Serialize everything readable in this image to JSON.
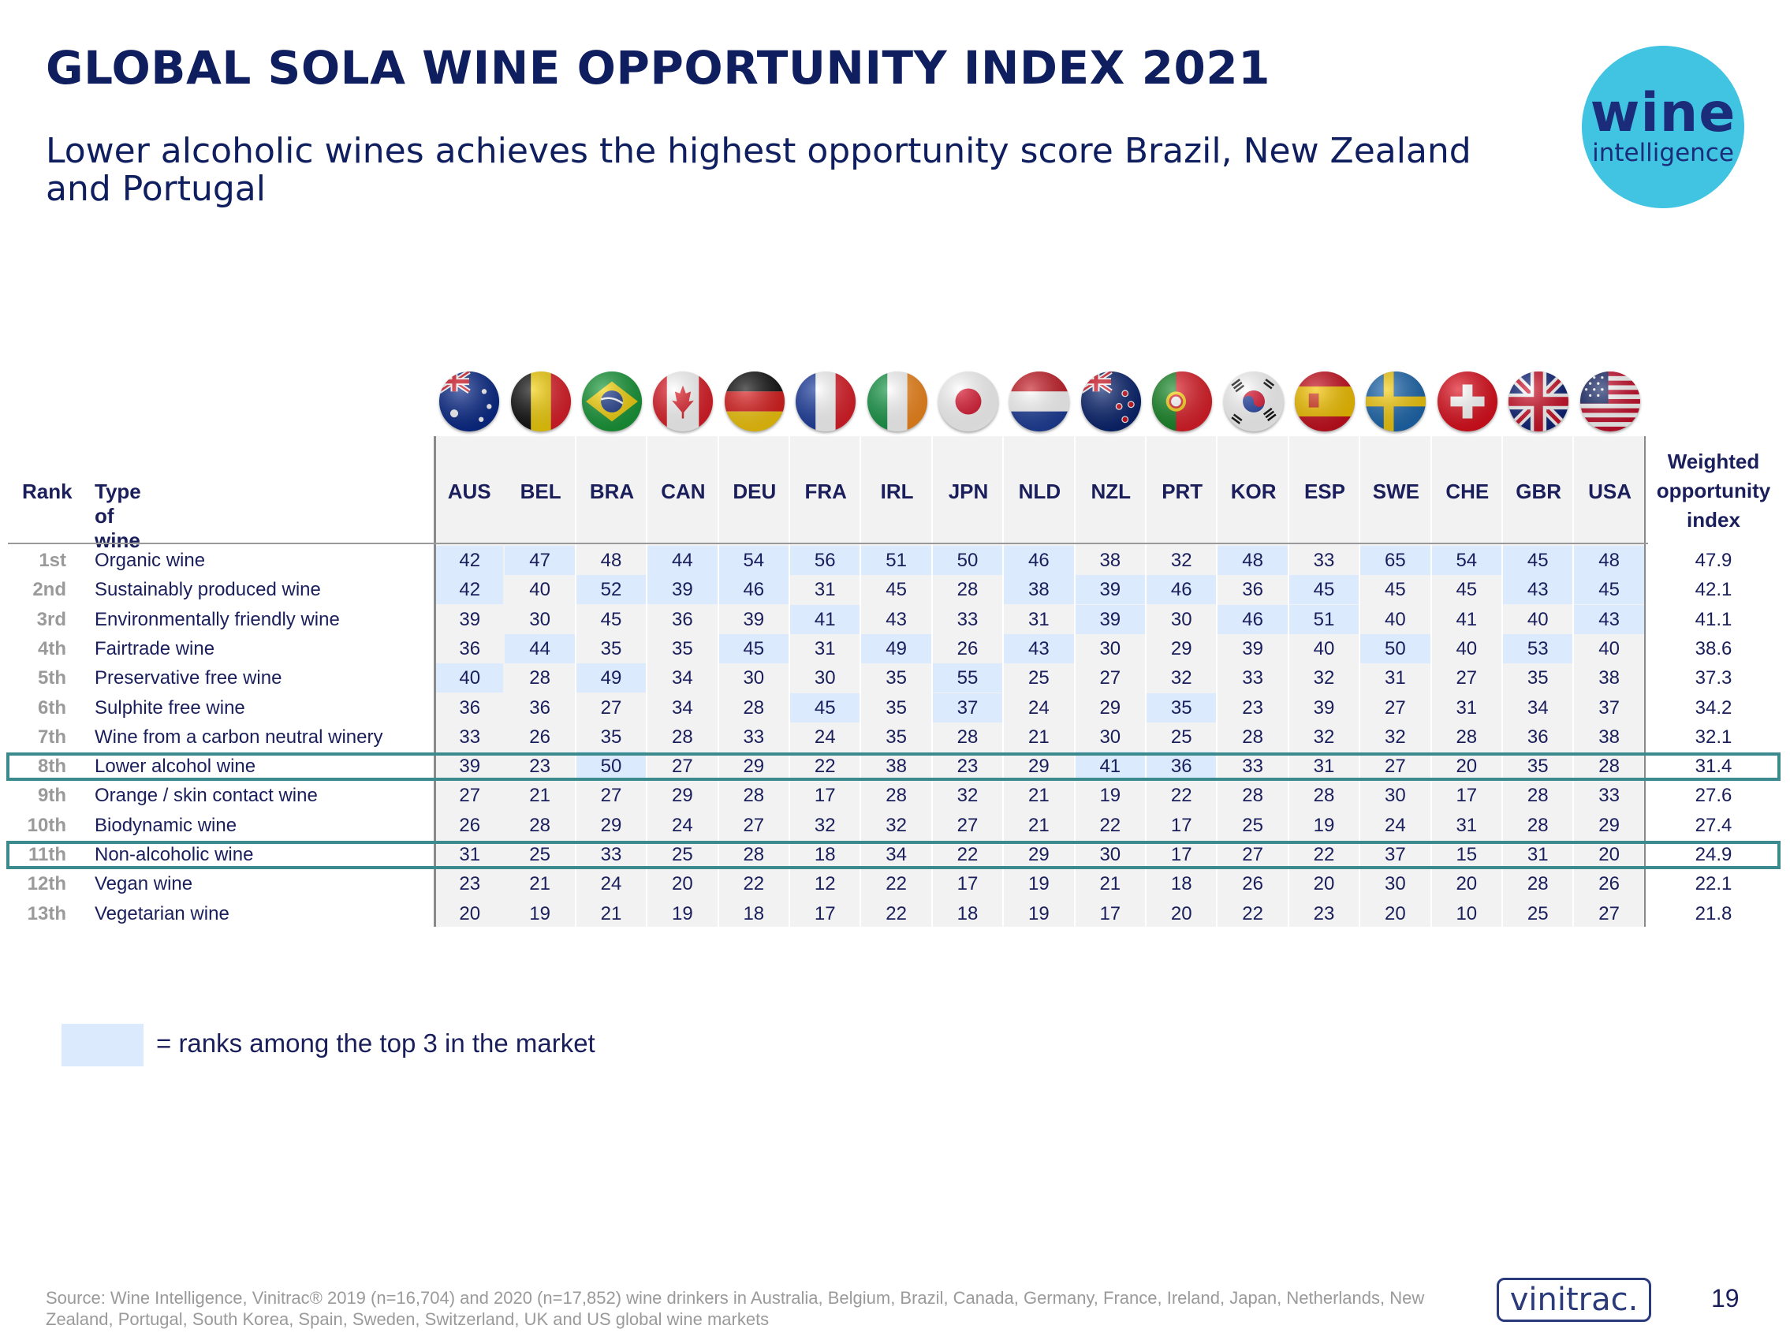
{
  "title": "GLOBAL SOLA WINE OPPORTUNITY INDEX 2021",
  "subtitle": "Lower alcoholic wines achieves the highest opportunity score Brazil, New Zealand and Portugal",
  "logo": {
    "line1": "wine",
    "line2": "intelligence"
  },
  "table": {
    "rank_header": "Rank",
    "type_header": "Type of wine",
    "index_header": [
      "Weighted",
      "opportunity",
      "index"
    ],
    "countries": [
      "AUS",
      "BEL",
      "BRA",
      "CAN",
      "DEU",
      "FRA",
      "IRL",
      "JPN",
      "NLD",
      "NZL",
      "PRT",
      "KOR",
      "ESP",
      "SWE",
      "CHE",
      "GBR",
      "USA"
    ],
    "flag_icons": [
      "australia-flag-icon",
      "belgium-flag-icon",
      "brazil-flag-icon",
      "canada-flag-icon",
      "germany-flag-icon",
      "france-flag-icon",
      "ireland-flag-icon",
      "japan-flag-icon",
      "netherlands-flag-icon",
      "new-zealand-flag-icon",
      "portugal-flag-icon",
      "south-korea-flag-icon",
      "spain-flag-icon",
      "sweden-flag-icon",
      "switzerland-flag-icon",
      "uk-flag-icon",
      "usa-flag-icon"
    ],
    "highlight_color": "#dbeafc",
    "rows": [
      {
        "rank": "1st",
        "type": "Organic wine",
        "values": [
          42,
          47,
          48,
          44,
          54,
          56,
          51,
          50,
          46,
          38,
          32,
          48,
          33,
          65,
          54,
          45,
          48
        ],
        "index": "47.9",
        "top3": [
          1,
          1,
          0,
          1,
          1,
          1,
          1,
          1,
          1,
          0,
          0,
          1,
          0,
          1,
          1,
          1,
          1
        ]
      },
      {
        "rank": "2nd",
        "type": "Sustainably produced wine",
        "values": [
          42,
          40,
          52,
          39,
          46,
          31,
          45,
          28,
          38,
          39,
          46,
          36,
          45,
          45,
          45,
          43,
          45
        ],
        "index": "42.1",
        "top3": [
          1,
          0,
          1,
          1,
          1,
          0,
          0,
          0,
          1,
          1,
          1,
          0,
          1,
          0,
          0,
          1,
          1
        ]
      },
      {
        "rank": "3rd",
        "type": "Environmentally friendly wine",
        "values": [
          39,
          30,
          45,
          36,
          39,
          41,
          43,
          33,
          31,
          39,
          30,
          46,
          51,
          40,
          41,
          40,
          43
        ],
        "index": "41.1",
        "top3": [
          0,
          0,
          0,
          0,
          0,
          1,
          0,
          0,
          0,
          1,
          0,
          1,
          1,
          0,
          0,
          0,
          1
        ]
      },
      {
        "rank": "4th",
        "type": "Fairtrade wine",
        "values": [
          36,
          44,
          35,
          35,
          45,
          31,
          49,
          26,
          43,
          30,
          29,
          39,
          40,
          50,
          40,
          53,
          40
        ],
        "index": "38.6",
        "top3": [
          0,
          1,
          0,
          0,
          1,
          0,
          1,
          0,
          1,
          0,
          0,
          0,
          0,
          1,
          0,
          1,
          0
        ]
      },
      {
        "rank": "5th",
        "type": "Preservative free wine",
        "values": [
          40,
          28,
          49,
          34,
          30,
          30,
          35,
          55,
          25,
          27,
          32,
          33,
          32,
          31,
          27,
          35,
          38
        ],
        "index": "37.3",
        "top3": [
          1,
          0,
          1,
          0,
          0,
          0,
          0,
          1,
          0,
          0,
          0,
          0,
          0,
          0,
          0,
          0,
          0
        ]
      },
      {
        "rank": "6th",
        "type": "Sulphite free wine",
        "values": [
          36,
          36,
          27,
          34,
          28,
          45,
          35,
          37,
          24,
          29,
          35,
          23,
          39,
          27,
          31,
          34,
          37
        ],
        "index": "34.2",
        "top3": [
          0,
          0,
          0,
          0,
          0,
          1,
          0,
          1,
          0,
          0,
          1,
          0,
          0,
          0,
          0,
          0,
          0
        ]
      },
      {
        "rank": "7th",
        "type": "Wine from a carbon neutral winery",
        "values": [
          33,
          26,
          35,
          28,
          33,
          24,
          35,
          28,
          21,
          30,
          25,
          28,
          32,
          32,
          28,
          36,
          38
        ],
        "index": "32.1",
        "top3": [
          0,
          0,
          0,
          0,
          0,
          0,
          0,
          0,
          0,
          0,
          0,
          0,
          0,
          0,
          0,
          0,
          0
        ]
      },
      {
        "rank": "8th",
        "type": "Lower alcohol wine",
        "values": [
          39,
          23,
          50,
          27,
          29,
          22,
          38,
          23,
          29,
          41,
          36,
          33,
          31,
          27,
          20,
          35,
          28
        ],
        "index": "31.4",
        "top3": [
          0,
          0,
          1,
          0,
          0,
          0,
          0,
          0,
          0,
          1,
          1,
          0,
          0,
          0,
          0,
          0,
          0
        ]
      },
      {
        "rank": "9th",
        "type": "Orange / skin contact wine",
        "values": [
          27,
          21,
          27,
          29,
          28,
          17,
          28,
          32,
          21,
          19,
          22,
          28,
          28,
          30,
          17,
          28,
          33
        ],
        "index": "27.6",
        "top3": [
          0,
          0,
          0,
          0,
          0,
          0,
          0,
          0,
          0,
          0,
          0,
          0,
          0,
          0,
          0,
          0,
          0
        ]
      },
      {
        "rank": "10th",
        "type": "Biodynamic wine",
        "values": [
          26,
          28,
          29,
          24,
          27,
          32,
          32,
          27,
          21,
          22,
          17,
          25,
          19,
          24,
          31,
          28,
          29
        ],
        "index": "27.4",
        "top3": [
          0,
          0,
          0,
          0,
          0,
          0,
          0,
          0,
          0,
          0,
          0,
          0,
          0,
          0,
          0,
          0,
          0
        ]
      },
      {
        "rank": "11th",
        "type": "Non-alcoholic wine",
        "values": [
          31,
          25,
          33,
          25,
          28,
          18,
          34,
          22,
          29,
          30,
          17,
          27,
          22,
          37,
          15,
          31,
          20
        ],
        "index": "24.9",
        "top3": [
          0,
          0,
          0,
          0,
          0,
          0,
          0,
          0,
          0,
          0,
          0,
          0,
          0,
          0,
          0,
          0,
          0
        ]
      },
      {
        "rank": "12th",
        "type": "Vegan wine",
        "values": [
          23,
          21,
          24,
          20,
          22,
          12,
          22,
          17,
          19,
          21,
          18,
          26,
          20,
          30,
          20,
          28,
          26
        ],
        "index": "22.1",
        "top3": [
          0,
          0,
          0,
          0,
          0,
          0,
          0,
          0,
          0,
          0,
          0,
          0,
          0,
          0,
          0,
          0,
          0
        ]
      },
      {
        "rank": "13th",
        "type": "Vegetarian wine",
        "values": [
          20,
          19,
          21,
          19,
          18,
          17,
          22,
          18,
          19,
          17,
          20,
          22,
          23,
          20,
          10,
          25,
          27
        ],
        "index": "21.8",
        "top3": [
          0,
          0,
          0,
          0,
          0,
          0,
          0,
          0,
          0,
          0,
          0,
          0,
          0,
          0,
          0,
          0,
          0
        ]
      }
    ],
    "boxed_ranks": [
      "8th",
      "11th"
    ],
    "box_color": "#3a8a8e"
  },
  "legend": {
    "text": "= ranks among the top 3 in the market"
  },
  "source": "Source: Wine Intelligence, Vinitrac® 2019 (n=16,704) and 2020 (n=17,852) wine drinkers in Australia, Belgium, Brazil, Canada, Germany, France, Ireland, Japan, Netherlands, New Zealand, Portugal, South Korea, Spain, Sweden, Switzerland, UK and US  global wine markets",
  "footer_logo": "vinitrac.",
  "page_number": "19"
}
